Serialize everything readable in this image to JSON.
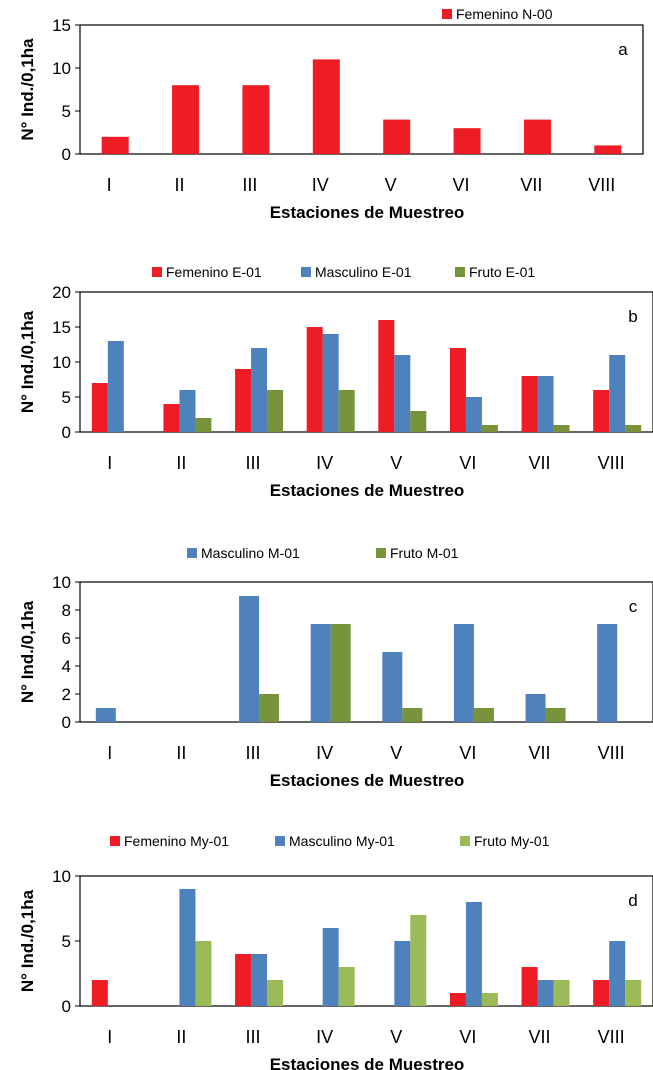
{
  "colors": {
    "femenino": "#ee1c25",
    "masculino": "#4f81bd",
    "fruto_dark": "#77933c",
    "fruto_light": "#9bbb59"
  },
  "chart_data": [
    {
      "type": "bar",
      "panel_label": "a",
      "categories": [
        "I",
        "II",
        "III",
        "IV",
        "V",
        "VI",
        "VII",
        "VIII"
      ],
      "series": [
        {
          "name": "Femenino N-00",
          "color": "#ee1c25",
          "values": [
            2,
            8,
            8,
            11,
            4,
            3,
            4,
            1
          ]
        }
      ],
      "xlabel": "Estaciones de Muestreo",
      "ylabel": "N° Ind./0,1ha",
      "ylim": [
        0,
        15
      ],
      "yticks": [
        0,
        5,
        10,
        15
      ],
      "grid": false,
      "legend": "top-right"
    },
    {
      "type": "bar",
      "panel_label": "b",
      "categories": [
        "I",
        "II",
        "III",
        "IV",
        "V",
        "VI",
        "VII",
        "VIII"
      ],
      "series": [
        {
          "name": "Femenino E-01",
          "color": "#ee1c25",
          "values": [
            7,
            4,
            9,
            15,
            16,
            12,
            8,
            6
          ]
        },
        {
          "name": "Masculino E-01",
          "color": "#4f81bd",
          "values": [
            13,
            6,
            12,
            14,
            11,
            5,
            8,
            11
          ]
        },
        {
          "name": "Fruto E-01",
          "color": "#77933c",
          "values": [
            0,
            2,
            6,
            6,
            3,
            1,
            1,
            1
          ]
        }
      ],
      "xlabel": "Estaciones de Muestreo",
      "ylabel": "N° Ind./0,1ha",
      "ylim": [
        0,
        20
      ],
      "yticks": [
        0,
        5,
        10,
        15,
        20
      ],
      "grid": false,
      "legend": "top"
    },
    {
      "type": "bar",
      "panel_label": "c",
      "categories": [
        "I",
        "II",
        "III",
        "IV",
        "V",
        "VI",
        "VII",
        "VIII"
      ],
      "series": [
        {
          "name": "Masculino M-01",
          "color": "#4f81bd",
          "values": [
            1,
            0,
            9,
            7,
            5,
            7,
            2,
            7
          ]
        },
        {
          "name": "Fruto M-01",
          "color": "#77933c",
          "values": [
            0,
            0,
            2,
            7,
            1,
            1,
            1,
            0
          ]
        }
      ],
      "xlabel": "Estaciones de Muestreo",
      "ylabel": "N° Ind./0,1ha",
      "ylim": [
        0,
        10
      ],
      "yticks": [
        0,
        2,
        4,
        6,
        8,
        10
      ],
      "grid": false,
      "legend": "top"
    },
    {
      "type": "bar",
      "panel_label": "d",
      "categories": [
        "I",
        "II",
        "III",
        "IV",
        "V",
        "VI",
        "VII",
        "VIII"
      ],
      "series": [
        {
          "name": "Femenino My-01",
          "color": "#ee1c25",
          "values": [
            2,
            0,
            4,
            0,
            0,
            1,
            3,
            2
          ]
        },
        {
          "name": "Masculino My-01",
          "color": "#4f81bd",
          "values": [
            0,
            9,
            4,
            6,
            5,
            8,
            2,
            5
          ]
        },
        {
          "name": "Fruto My-01",
          "color": "#9bbb59",
          "values": [
            0,
            5,
            2,
            3,
            7,
            1,
            2,
            2
          ]
        }
      ],
      "xlabel": "Estaciones de Muestreo",
      "ylabel": "N° Ind./0,1ha",
      "ylim": [
        0,
        10
      ],
      "yticks": [
        0,
        5,
        10
      ],
      "grid": false,
      "legend": "top"
    }
  ]
}
